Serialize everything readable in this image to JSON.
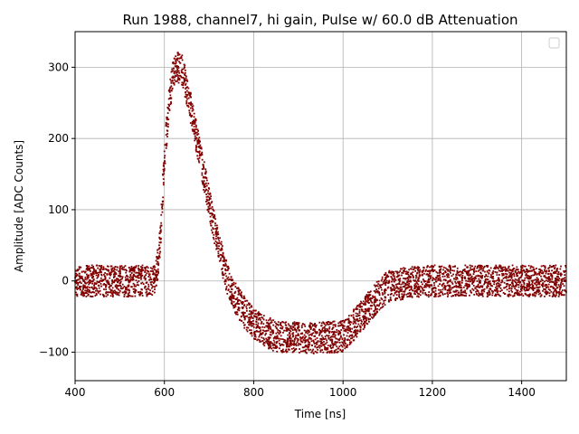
{
  "chart_data": {
    "type": "scatter",
    "title": "Run 1988, channel7, hi gain, Pulse w/ 60.0 dB Attenuation",
    "xlabel": "Time [ns]",
    "ylabel": "Amplitude [ADC Counts]",
    "xlim": [
      400,
      1500
    ],
    "ylim": [
      -140,
      350
    ],
    "xticks": [
      400,
      600,
      800,
      1000,
      1200,
      1400
    ],
    "yticks": [
      -100,
      0,
      100,
      200,
      300
    ],
    "ytick_labels": [
      "−100",
      "0",
      "100",
      "200",
      "300"
    ],
    "grid": true,
    "legend": {
      "placement": "top-right",
      "entries": []
    },
    "colors": {
      "points": "#800000",
      "grid": "#b0b0b0"
    },
    "series": [
      {
        "color": "#800000",
        "band_halfwidth": 22,
        "x": [
          400,
          580,
          590,
          600,
          610,
          620,
          630,
          640,
          650,
          660,
          680,
          700,
          720,
          740,
          760,
          780,
          800,
          830,
          850,
          900,
          950,
          1000,
          1020,
          1040,
          1060,
          1080,
          1100,
          1150,
          1200,
          1300,
          1400,
          1500
        ],
        "y": [
          0,
          0,
          50,
          170,
          250,
          290,
          300,
          295,
          270,
          240,
          175,
          110,
          50,
          5,
          -25,
          -45,
          -60,
          -72,
          -78,
          -80,
          -80,
          -78,
          -65,
          -50,
          -35,
          -20,
          -8,
          -2,
          0,
          0,
          0,
          0
        ]
      }
    ]
  }
}
